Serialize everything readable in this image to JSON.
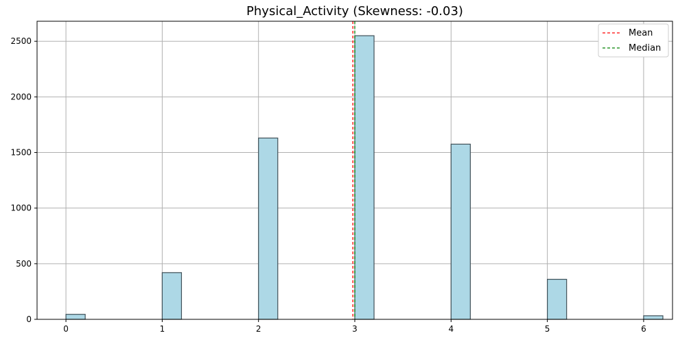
{
  "chart_data": {
    "type": "bar",
    "title": "Physical_Activity (Skewness: -0.03)",
    "xlabel": "",
    "ylabel": "",
    "x_ticks": [
      "0",
      "1",
      "2",
      "3",
      "4",
      "5",
      "6"
    ],
    "y_ticks": [
      "0",
      "500",
      "1000",
      "1500",
      "2000",
      "2500"
    ],
    "xlim": [
      -0.3,
      6.3
    ],
    "ylim": [
      0,
      2680
    ],
    "grid": true,
    "bar_width": 0.2,
    "bar_color": "#add8e6",
    "bar_edge_color": "#3f4f57",
    "bins": [
      {
        "x": 0,
        "count": 45
      },
      {
        "x": 1,
        "count": 420
      },
      {
        "x": 2,
        "count": 1630
      },
      {
        "x": 3,
        "count": 2550
      },
      {
        "x": 4,
        "count": 1575
      },
      {
        "x": 5,
        "count": 360
      },
      {
        "x": 6,
        "count": 32
      }
    ],
    "mean": 2.98,
    "median": 3.0,
    "legend_position": "top-right",
    "legend": [
      {
        "label": "Mean",
        "color": "#ff0000"
      },
      {
        "label": "Median",
        "color": "#008000"
      }
    ]
  }
}
